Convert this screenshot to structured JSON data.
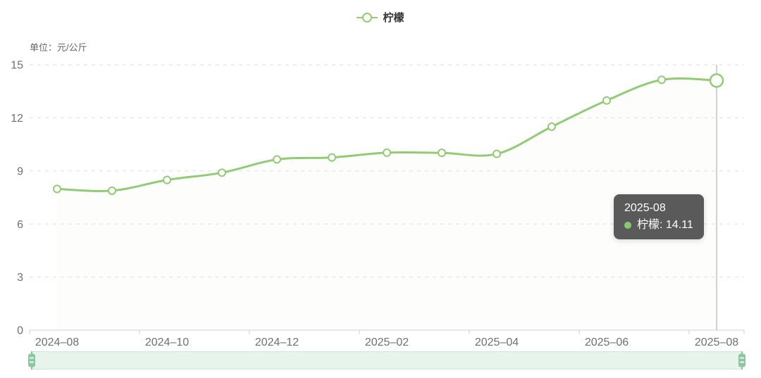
{
  "meta": {
    "unit_label": "单位：元/公斤"
  },
  "legend": {
    "items": [
      {
        "label": "柠檬",
        "color": "#91cc75"
      }
    ]
  },
  "tooltip": {
    "title": "2025-08",
    "series_text": "柠檬: 14.11",
    "marker_color": "#85ca6d"
  },
  "chart_data": {
    "type": "line",
    "title": "",
    "xlabel": "",
    "ylabel": "元/公斤",
    "x": [
      "2024-08",
      "2024-09",
      "2024-10",
      "2024-11",
      "2024-12",
      "2025-01",
      "2025-02",
      "2025-03",
      "2025-04",
      "2025-05",
      "2025-06",
      "2025-07",
      "2025-08"
    ],
    "series": [
      {
        "name": "柠檬",
        "color": "#91cc75",
        "smooth": true,
        "area": true,
        "values": [
          7.98,
          7.88,
          8.49,
          8.9,
          9.65,
          9.76,
          10.03,
          10.02,
          9.96,
          11.5,
          12.98,
          14.15,
          14.11
        ]
      }
    ],
    "xtick_labels": [
      "2024-08",
      "2024-10",
      "2024-12",
      "2025-02",
      "2025-04",
      "2025-06",
      "2025-08"
    ],
    "yticks": [
      0,
      3,
      6,
      9,
      12,
      15
    ],
    "ylim": [
      0,
      15
    ],
    "grid": "horizontal dashed",
    "legend_position": "top-center",
    "highlight": {
      "index": 12,
      "category": "2025-08",
      "value": 14.11
    }
  },
  "colors": {
    "series_green": "#91cc75",
    "area_top": "rgba(145,204,117,0.33)",
    "area_bottom": "rgba(145,204,117,0.02)",
    "grid_line": "#dddfe6",
    "axis_line": "#ccd0d9",
    "axis_label": "#6e7079",
    "pointer_line": "#b2b5bc",
    "tooltip_bg": "rgba(78,78,78,0.93)",
    "zoom_track_bg": "#e7f4ec",
    "zoom_track_border": "#cfe7da",
    "zoom_handle": "#8bc7a3"
  },
  "datazoom": {
    "start_percent": 0,
    "end_percent": 100
  }
}
